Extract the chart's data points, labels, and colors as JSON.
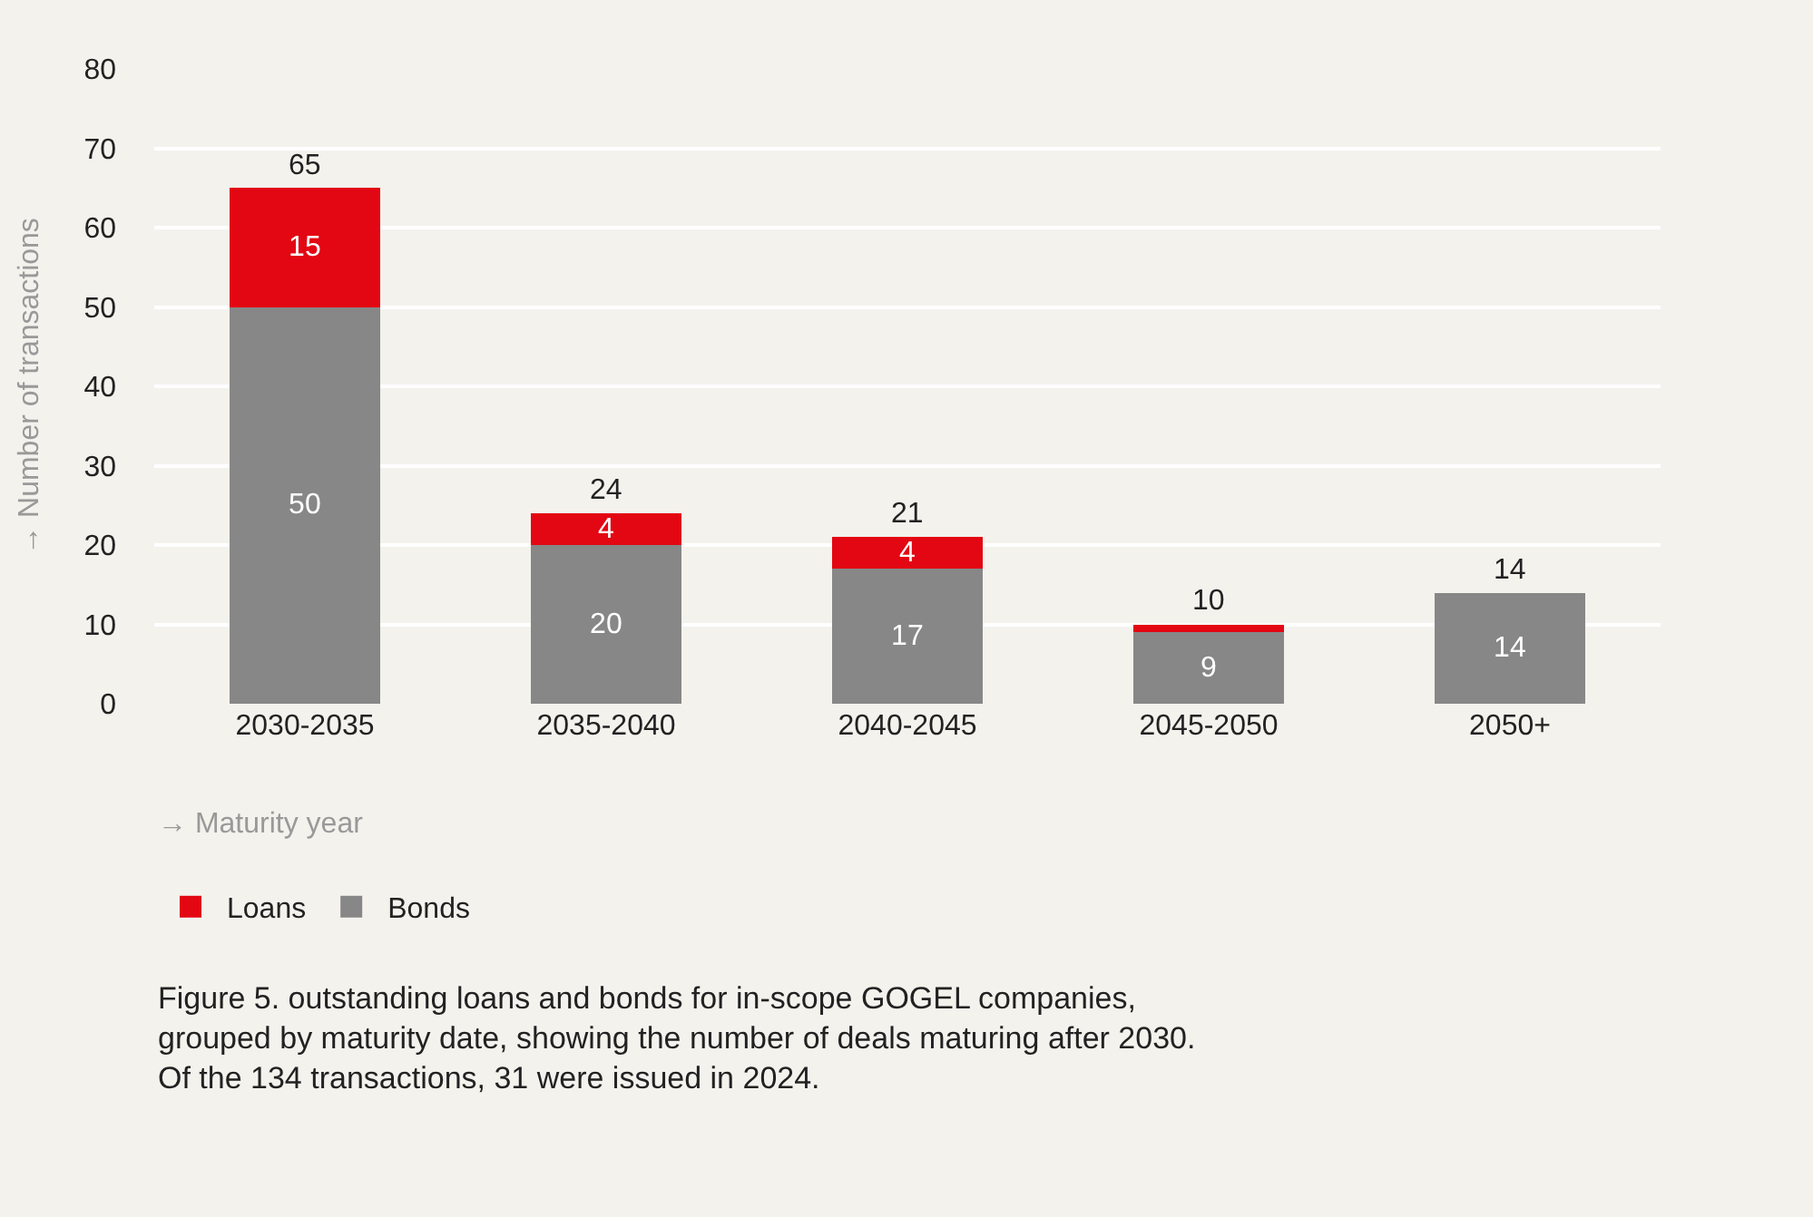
{
  "chart_data": {
    "type": "bar",
    "stacked": true,
    "categories": [
      "2030-2035",
      "2035-2040",
      "2040-2045",
      "2045-2050",
      "2050+"
    ],
    "series": [
      {
        "name": "Bonds",
        "color": "#878787",
        "values": [
          50,
          20,
          17,
          9,
          14
        ],
        "value_labels": [
          "50",
          "20",
          "17",
          "9",
          "14"
        ]
      },
      {
        "name": "Loans",
        "color": "#e30613",
        "values": [
          15,
          4,
          4,
          1,
          0
        ],
        "value_labels": [
          "15",
          "4",
          "4",
          null,
          null
        ]
      }
    ],
    "totals": [
      "65",
      "24",
      "21",
      "10",
      "14"
    ],
    "ylim": [
      0,
      80
    ],
    "yticks": [
      0,
      10,
      20,
      30,
      40,
      50,
      60,
      70,
      80
    ],
    "grid": "y",
    "legend": "bottom left",
    "xlabel": "→ Maturity year",
    "ylabel": "→ Number of transactions",
    "annotations": [
      "Figure 5. outstanding loans and bonds for in-scope GOGEL companies,\ngrouped by maturity date, showing the number of deals maturing after 2030.\nOf the 134 transactions, 31 were issued in 2024."
    ]
  }
}
